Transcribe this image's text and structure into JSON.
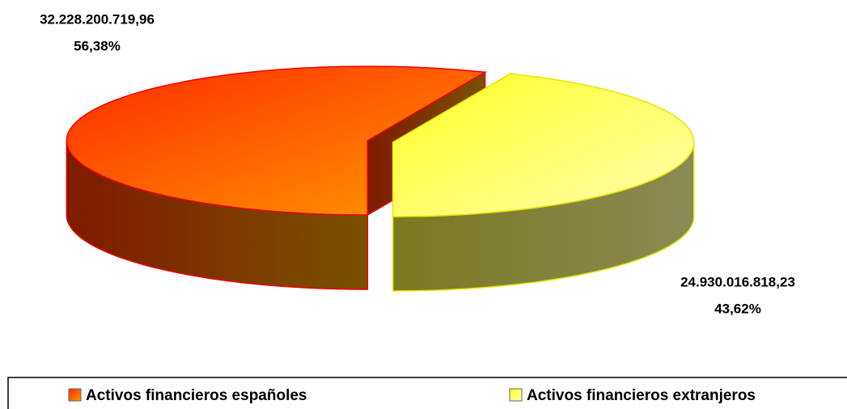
{
  "chart_data": {
    "type": "pie3d",
    "categories": [
      "Activos financieros españoles",
      "Activos financieros extranjeros"
    ],
    "values": [
      32228200719.96,
      24930016818.23
    ],
    "value_labels": [
      "32.228.200.719,96",
      "24.930.016.818,23"
    ],
    "percentages": [
      56.38,
      43.62
    ],
    "percentage_labels": [
      "56,38%",
      "43,62%"
    ],
    "colors": [
      "#ff6600",
      "#ffff33"
    ],
    "legend": "bottom"
  }
}
